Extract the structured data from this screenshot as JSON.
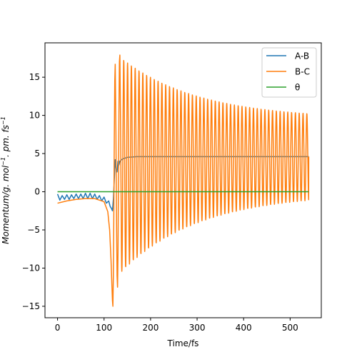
{
  "chart_data": {
    "type": "line",
    "title": "",
    "xlabel": "Time/fs",
    "ylabel_parts": [
      "Momentum/g. mol",
      "−1",
      ". pm. fs",
      "−1"
    ],
    "xlim": [
      -27,
      567
    ],
    "ylim": [
      -16.5,
      19.5
    ],
    "xticks": [
      0,
      100,
      200,
      300,
      400,
      500
    ],
    "yticks": [
      -15,
      -10,
      -5,
      0,
      5,
      10,
      15
    ],
    "xtick_labels": [
      "0",
      "100",
      "200",
      "300",
      "400",
      "500"
    ],
    "ytick_labels": [
      "−15",
      "−10",
      "−5",
      "0",
      "5",
      "10",
      "15"
    ],
    "grid": false,
    "legend_position": "top-right",
    "series": [
      {
        "name": "A-B",
        "color": "#1f77b4",
        "x": [
          0,
          5,
          10,
          15,
          20,
          25,
          30,
          35,
          40,
          45,
          50,
          55,
          60,
          65,
          70,
          75,
          80,
          85,
          90,
          95,
          100,
          105,
          110,
          113,
          116,
          118,
          120,
          122,
          124,
          126,
          128,
          130,
          132,
          134,
          136,
          140,
          145,
          150,
          160,
          170,
          180,
          200,
          250,
          300,
          350,
          400,
          450,
          500,
          540
        ],
        "y": [
          -0.3,
          -1.1,
          -0.5,
          -1.0,
          -0.4,
          -1.0,
          -0.4,
          -0.9,
          -0.3,
          -0.9,
          -0.3,
          -0.9,
          -0.2,
          -0.9,
          -0.2,
          -0.9,
          -0.3,
          -1.0,
          -0.5,
          -1.2,
          -0.7,
          -1.5,
          -1.2,
          -1.9,
          -2.2,
          -2.5,
          -1.0,
          1.5,
          4.2,
          3.0,
          2.6,
          4.0,
          3.5,
          4.0,
          4.1,
          4.3,
          4.4,
          4.5,
          4.55,
          4.6,
          4.6,
          4.6,
          4.6,
          4.6,
          4.6,
          4.6,
          4.6,
          4.6,
          4.6
        ]
      },
      {
        "name": "B-C",
        "color": "#ff7f0e",
        "x": [
          0,
          20,
          40,
          60,
          80,
          100,
          108,
          112,
          115,
          117,
          118,
          119,
          120,
          121,
          122,
          123,
          124,
          125.5,
          127,
          128,
          129,
          130,
          131,
          132,
          133,
          134,
          135.5,
          137
        ],
        "y": [
          -1.5,
          -1.2,
          -1.0,
          -0.9,
          -0.9,
          -1.3,
          -2.6,
          -5.0,
          -9.0,
          -12.5,
          -14.2,
          -15.0,
          -11.0,
          -3.0,
          7.0,
          14.5,
          16.7,
          8.0,
          -5.0,
          -11.0,
          -12.5,
          -8.0,
          1.0,
          10.5,
          17.0,
          17.9,
          9.0,
          -4.0
        ],
        "oscillation": {
          "t_start": 137,
          "t_end": 540,
          "period": 8.2,
          "max_start": 17.5,
          "max_end": 9.5,
          "min_start": -10.5,
          "min_end": -0.2,
          "end_value": 4.6
        }
      },
      {
        "name": "θ",
        "color": "#2ca02c",
        "x": [
          0,
          540
        ],
        "y": [
          0,
          0
        ]
      }
    ]
  }
}
